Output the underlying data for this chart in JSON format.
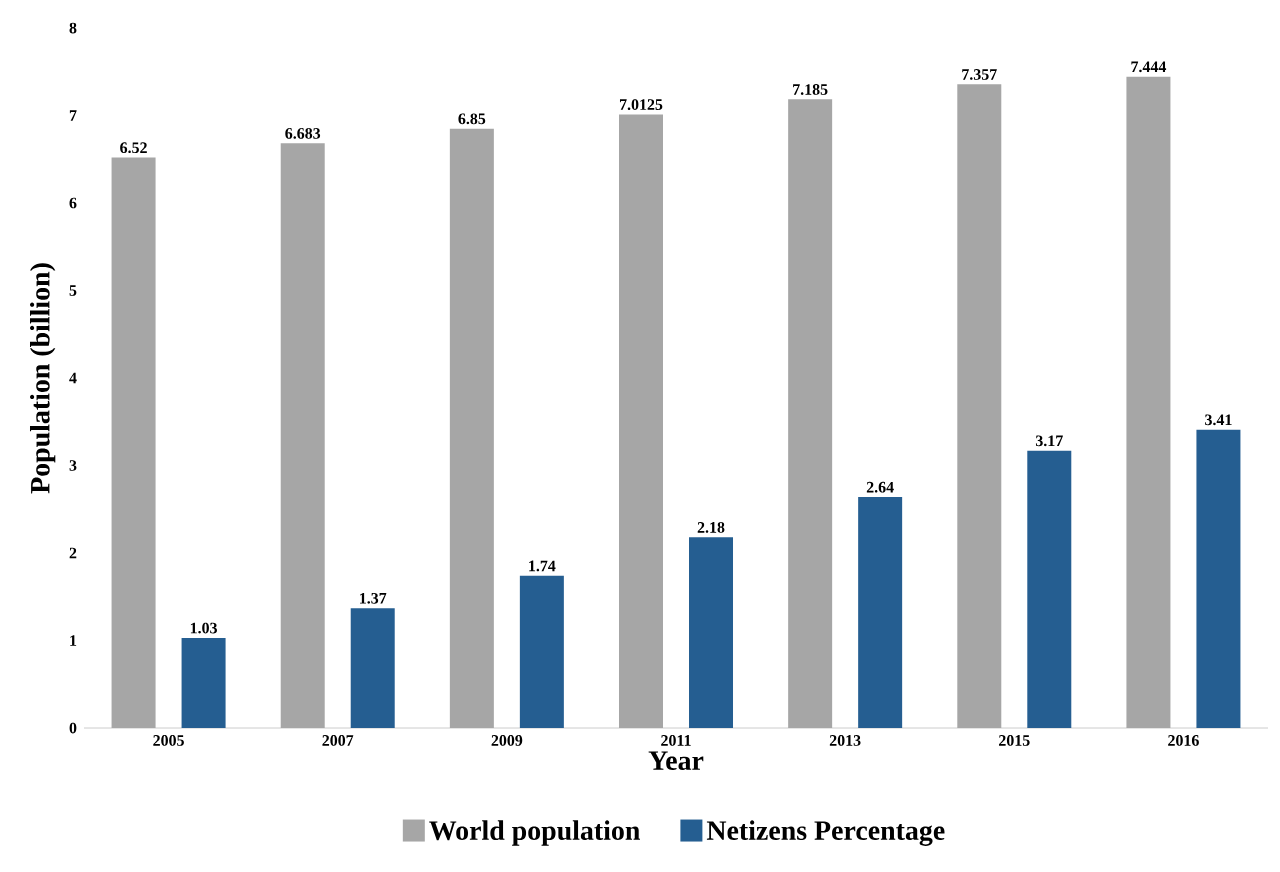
{
  "chart_data": {
    "type": "bar",
    "xlabel": "Year",
    "ylabel": "Population (billion)",
    "categories": [
      "2005",
      "2007",
      "2009",
      "2011",
      "2013",
      "2015",
      "2016"
    ],
    "series": [
      {
        "name": "World population",
        "color": "#a6a6a6",
        "values": [
          6.52,
          6.683,
          6.85,
          7.0125,
          7.185,
          7.357,
          7.444
        ]
      },
      {
        "name": "Netizens Percentage",
        "color": "#255e91",
        "values": [
          1.03,
          1.37,
          1.74,
          2.18,
          2.64,
          3.17,
          3.41
        ]
      }
    ],
    "ylim": [
      0,
      8
    ],
    "yticks": [
      0,
      1,
      2,
      3,
      4,
      5,
      6,
      7,
      8
    ],
    "data_labels": true,
    "legend": "bottom"
  }
}
